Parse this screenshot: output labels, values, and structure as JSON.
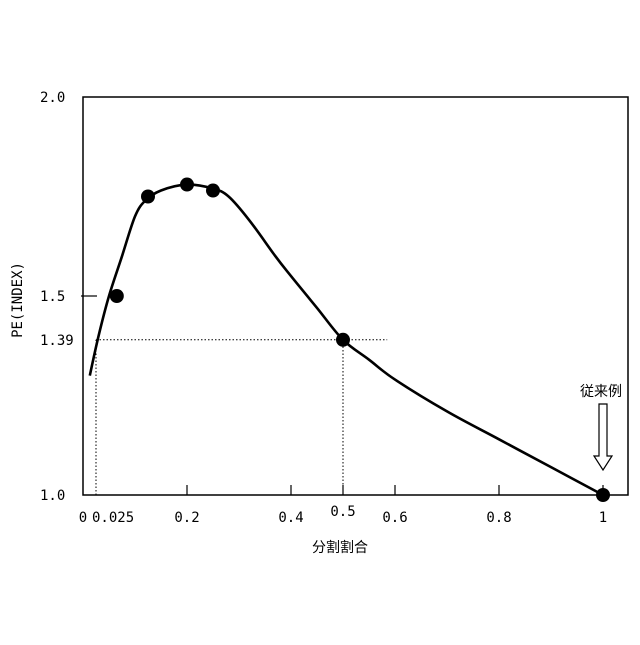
{
  "chart_data": {
    "type": "line",
    "title": "",
    "xlabel": "分割割合",
    "ylabel": "PE(INDEX)",
    "xlim": [
      0,
      1.05
    ],
    "ylim": [
      1.0,
      2.0
    ],
    "x_ticks": [
      {
        "value": 0,
        "label": "0"
      },
      {
        "value": 0.025,
        "label": "0.025"
      },
      {
        "value": 0.2,
        "label": "0.2"
      },
      {
        "value": 0.4,
        "label": "0.4"
      },
      {
        "value": 0.5,
        "label": "0.5"
      },
      {
        "value": 0.6,
        "label": "0.6"
      },
      {
        "value": 0.8,
        "label": "0.8"
      },
      {
        "value": 1,
        "label": "1"
      }
    ],
    "y_ticks": [
      {
        "value": 1.0,
        "label": "1.0"
      },
      {
        "value": 1.39,
        "label": "1.39"
      },
      {
        "value": 1.5,
        "label": "1.5"
      },
      {
        "value": 2.0,
        "label": "2.0"
      }
    ],
    "grid": false,
    "series": [
      {
        "points": [
          {
            "x": 0.065,
            "y": 1.5
          },
          {
            "x": 0.125,
            "y": 1.75
          },
          {
            "x": 0.2,
            "y": 1.78
          },
          {
            "x": 0.25,
            "y": 1.765
          },
          {
            "x": 0.5,
            "y": 1.39
          },
          {
            "x": 1.0,
            "y": 1.0
          }
        ],
        "curve": [
          [
            0.013,
            1.3
          ],
          [
            0.03,
            1.4
          ],
          [
            0.05,
            1.5
          ],
          [
            0.075,
            1.6
          ],
          [
            0.1,
            1.7
          ],
          [
            0.12,
            1.74
          ],
          [
            0.15,
            1.765
          ],
          [
            0.2,
            1.78
          ],
          [
            0.25,
            1.77
          ],
          [
            0.28,
            1.75
          ],
          [
            0.32,
            1.69
          ],
          [
            0.37,
            1.6
          ],
          [
            0.4,
            1.55
          ],
          [
            0.45,
            1.47
          ],
          [
            0.5,
            1.39
          ],
          [
            0.55,
            1.34
          ],
          [
            0.6,
            1.29
          ],
          [
            0.7,
            1.21
          ],
          [
            0.8,
            1.14
          ],
          [
            0.9,
            1.07
          ],
          [
            1.0,
            1.0
          ]
        ]
      }
    ],
    "reference_lines": [
      {
        "y": 1.39,
        "x_from": 0.025,
        "x_to": 0.585,
        "style": "dotted"
      },
      {
        "x": 0.025,
        "y_from": 1.0,
        "y_to": 1.39,
        "style": "dotted"
      },
      {
        "x": 0.5,
        "y_from": 1.0,
        "y_to": 1.39,
        "style": "dotted"
      }
    ],
    "annotations": [
      {
        "text": "従来例",
        "x": 1.0,
        "arrow": "down",
        "target_y": 1.0
      }
    ]
  }
}
